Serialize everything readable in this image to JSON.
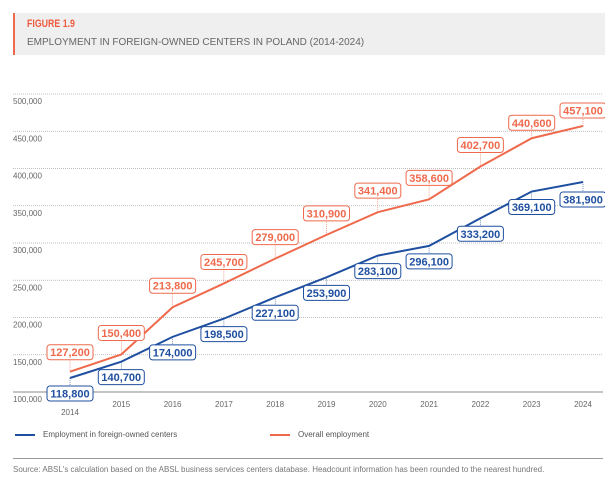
{
  "figure_label": "FIGURE 1.9",
  "chart_data": {
    "type": "line",
    "title": "EMPLOYMENT IN FOREIGN-OWNED CENTERS IN POLAND (2014-2024)",
    "categories": [
      "2014",
      "2015",
      "2016",
      "2017",
      "2018",
      "2019",
      "2020",
      "2021",
      "2022",
      "2023",
      "2024"
    ],
    "series": [
      {
        "name": "Employment in foreign-owned centers",
        "color": "#1f4fa0",
        "values": [
          118800,
          140700,
          174000,
          198500,
          227100,
          253900,
          283100,
          296100,
          333200,
          369100,
          381900
        ],
        "labels": [
          "118,800",
          "140,700",
          "174,000",
          "198,500",
          "227,100",
          "253,900",
          "283,100",
          "296,100",
          "333,200",
          "369,100",
          "381,900"
        ]
      },
      {
        "name": "Overall employment",
        "color": "#ef6a4c",
        "values": [
          127200,
          150400,
          213800,
          245700,
          279000,
          310900,
          341400,
          358600,
          402700,
          440600,
          457100
        ],
        "labels": [
          "127,200",
          "150,400",
          "213,800",
          "245,700",
          "279,000",
          "310,900",
          "341,400",
          "358,600",
          "402,700",
          "440,600",
          "457,100"
        ]
      }
    ],
    "yticks": [
      "100,000",
      "150,000",
      "200,000",
      "250,000",
      "300,000",
      "350,000",
      "400,000",
      "450,000",
      "500,000"
    ],
    "ylim": [
      100000,
      500000
    ],
    "grid": true,
    "legend": "bottom"
  },
  "source": "Source: ABSL's calculation based on the ABSL business services centers database. Headcount information has been rounded to the nearest hundred."
}
